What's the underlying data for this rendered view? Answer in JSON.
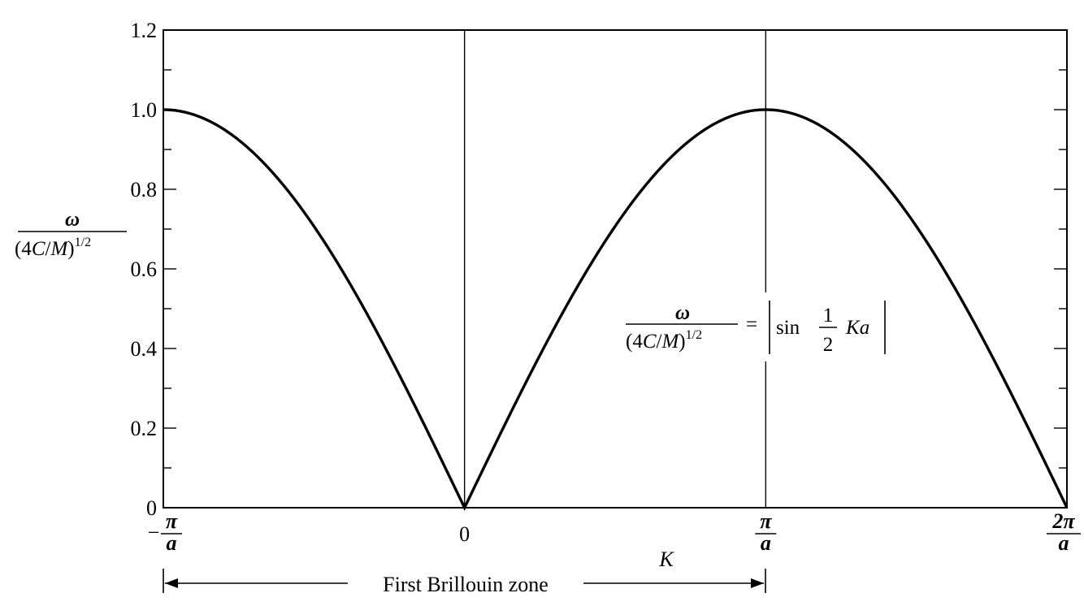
{
  "chart_data": {
    "type": "line",
    "title": "",
    "xlabel": "K",
    "ylabel": {
      "numerator": "ω",
      "denominator_open": "(4",
      "denominator_C": "C",
      "denominator_slash": "/",
      "denominator_M": "M",
      "denominator_close": ")",
      "exponent": "1/2"
    },
    "xlim_units_pi_over_a": [
      -1,
      2
    ],
    "ylim": [
      0,
      1.2
    ],
    "yticks": [
      {
        "value": 0,
        "label": "0"
      },
      {
        "value": 0.2,
        "label": "0.2"
      },
      {
        "value": 0.4,
        "label": "0.4"
      },
      {
        "value": 0.6,
        "label": "0.6"
      },
      {
        "value": 0.8,
        "label": "0.8"
      },
      {
        "value": 1.0,
        "label": "1.0"
      },
      {
        "value": 1.2,
        "label": "1.2"
      }
    ],
    "yminor_step": 0.1,
    "xticks": [
      {
        "value": -1,
        "sign": "−",
        "numerator": "π",
        "denominator": "a"
      },
      {
        "value": 0,
        "label": "0"
      },
      {
        "value": 1,
        "numerator": "π",
        "denominator": "a"
      },
      {
        "value": 2,
        "numerator": "2π",
        "denominator": "a"
      }
    ],
    "vertical_lines_at": [
      0,
      1
    ],
    "series": [
      {
        "function": "abs(sin(pi*x/2))",
        "x": [
          -1.0,
          -0.75,
          -0.5,
          -0.25,
          0.0,
          0.25,
          0.5,
          0.75,
          1.0,
          1.25,
          1.5,
          1.75,
          2.0
        ],
        "y": [
          1.0,
          0.924,
          0.707,
          0.383,
          0.0,
          0.383,
          0.707,
          0.924,
          1.0,
          0.924,
          0.707,
          0.383,
          0.0
        ]
      }
    ],
    "equation": {
      "numerator": "ω",
      "denominator_open": "(4",
      "denominator_C": "C",
      "denominator_slash": "/",
      "denominator_M": "M",
      "denominator_close": ")",
      "exponent": "1/2",
      "equals": "=",
      "sin": "sin",
      "half_numerator": "1",
      "half_denominator": "2",
      "K": "K",
      "a": "a"
    },
    "annotation": {
      "text": "First Brillouin zone",
      "from": -1,
      "to": 1
    }
  }
}
